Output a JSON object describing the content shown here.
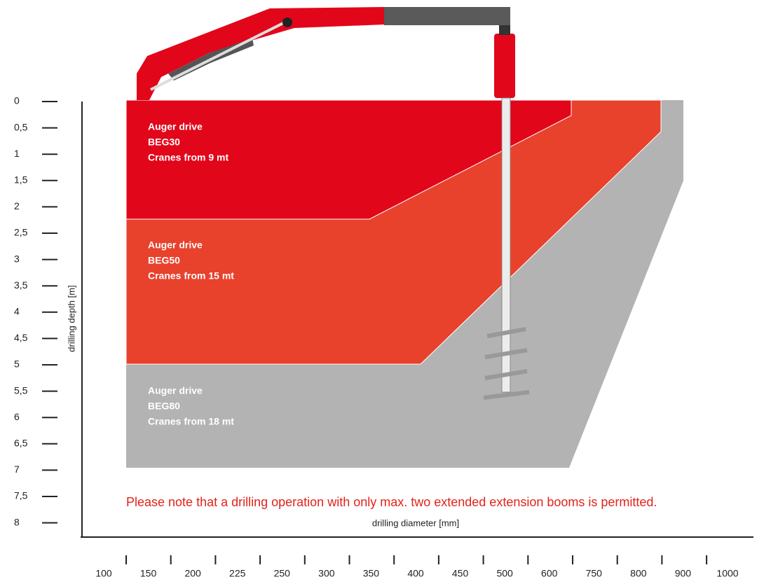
{
  "y_axis": {
    "label": "drilling depth [m]",
    "ticks": [
      "0",
      "0,5",
      "1",
      "1,5",
      "2",
      "2,5",
      "3",
      "3,5",
      "4",
      "4,5",
      "5",
      "5,5",
      "6",
      "6,5",
      "7",
      "7,5",
      "8"
    ]
  },
  "x_axis": {
    "label": "drilling diameter [mm]",
    "ticks": [
      "100",
      "150",
      "200",
      "225",
      "250",
      "300",
      "350",
      "400",
      "450",
      "500",
      "600",
      "750",
      "800",
      "900",
      "1000"
    ]
  },
  "regions": [
    {
      "lines": [
        "Auger drive",
        "BEG30",
        "Cranes from 9 mt"
      ]
    },
    {
      "lines": [
        "Auger drive",
        "BEG50",
        "Cranes from 15 mt"
      ]
    },
    {
      "lines": [
        "Auger drive",
        "BEG80",
        "Cranes from 18 mt"
      ]
    }
  ],
  "note": "Please note that a drilling operation with only max. two extended extension booms is permitted."
}
